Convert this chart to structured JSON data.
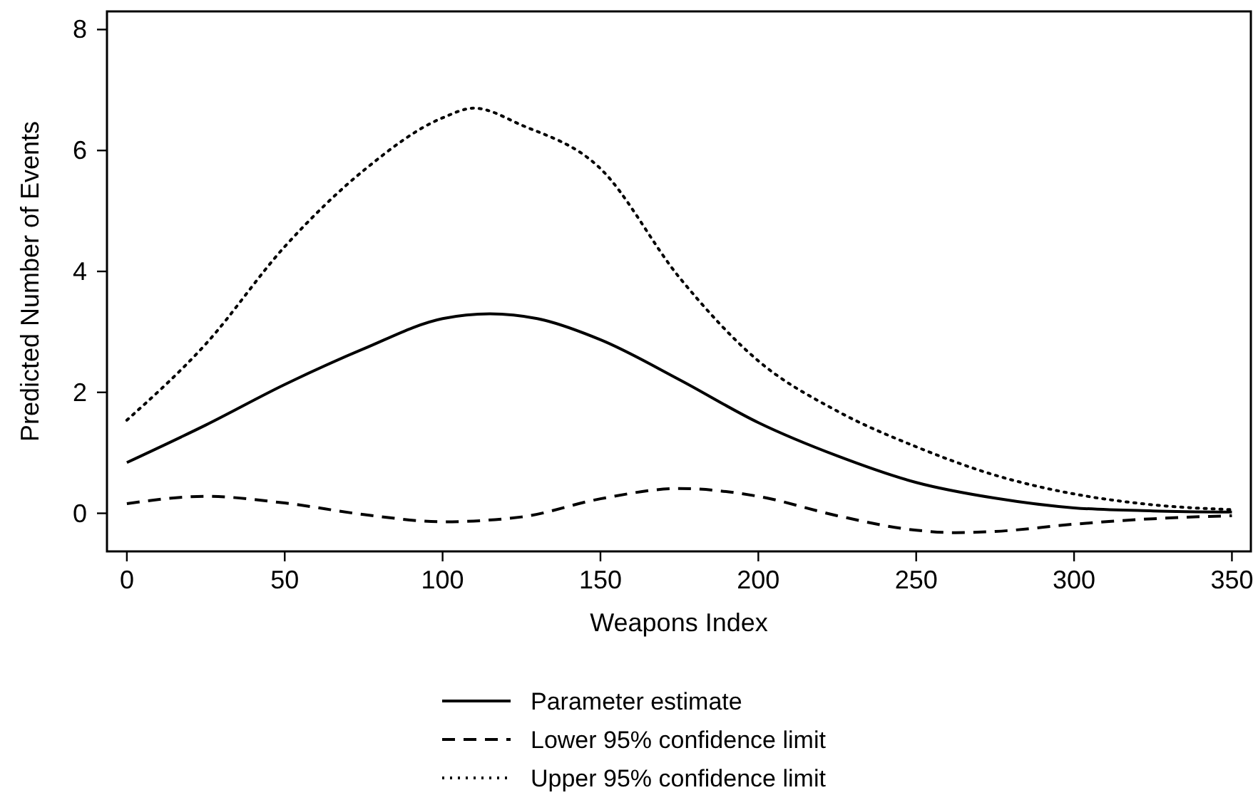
{
  "chart_data": {
    "type": "line",
    "xlabel": "Weapons Index",
    "ylabel": "Predicted Number of Events",
    "xlim": [
      -6.3,
      356
    ],
    "ylim": [
      -0.63,
      8.3
    ],
    "xticks": [
      0,
      50,
      100,
      150,
      200,
      250,
      300,
      350
    ],
    "yticks": [
      0,
      2,
      4,
      6,
      8
    ],
    "grid": false,
    "legend": "bottom",
    "series": [
      {
        "name": "Parameter estimate",
        "color": "#000000",
        "line_style": "solid",
        "x": [
          0,
          25,
          50,
          75,
          100,
          115,
          130,
          150,
          175,
          200,
          225,
          250,
          275,
          300,
          325,
          350
        ],
        "values": [
          0.84,
          1.46,
          2.13,
          2.72,
          3.22,
          3.3,
          3.22,
          2.87,
          2.21,
          1.5,
          0.95,
          0.51,
          0.25,
          0.09,
          0.04,
          0.02
        ]
      },
      {
        "name": "Lower 95% confidence limit",
        "color": "#000000",
        "line_style": "dashed",
        "x": [
          0,
          25,
          50,
          75,
          100,
          125,
          150,
          175,
          200,
          225,
          250,
          262,
          275,
          300,
          325,
          350
        ],
        "values": [
          0.16,
          0.28,
          0.17,
          -0.02,
          -0.14,
          -0.06,
          0.24,
          0.41,
          0.28,
          -0.04,
          -0.28,
          -0.32,
          -0.3,
          -0.18,
          -0.09,
          -0.04
        ]
      },
      {
        "name": "Upper 95% confidence limit",
        "color": "#000000",
        "line_style": "dotted",
        "x": [
          0,
          25,
          50,
          75,
          100,
          110,
          125,
          150,
          175,
          200,
          225,
          250,
          275,
          300,
          325,
          350
        ],
        "values": [
          1.54,
          2.8,
          4.41,
          5.67,
          6.54,
          6.7,
          6.42,
          5.7,
          3.9,
          2.52,
          1.69,
          1.1,
          0.63,
          0.32,
          0.14,
          0.06
        ]
      }
    ]
  }
}
